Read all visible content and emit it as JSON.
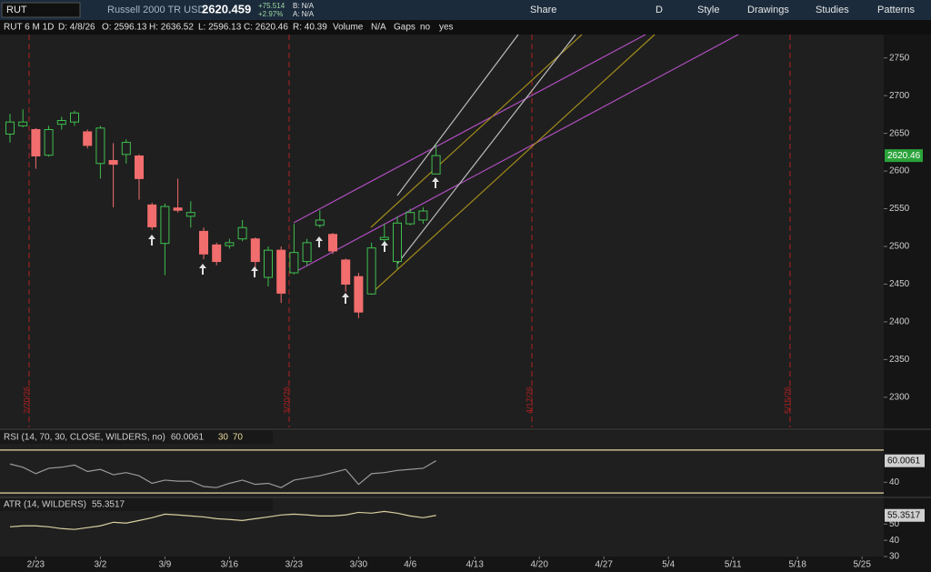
{
  "toolbar": {
    "symbol": "RUT",
    "description": "Russell 2000 TR USD",
    "last": "2620.459",
    "change": "+75.514",
    "change_pct": "+2.97%",
    "bid": "B: N/A",
    "ask": "A: N/A",
    "buttons": [
      "Share",
      "D",
      "Style",
      "Drawings",
      "Studies",
      "Patterns"
    ]
  },
  "info_bar": [
    "RUT 6 M 1D",
    "D: 4/8/26",
    "O: 2596.13",
    "H: 2636.52",
    "L: 2596.13",
    "C: 2620.46",
    "R: 40.39",
    "Volume",
    "N/A",
    "Gaps",
    "no",
    "yes"
  ],
  "chart_data": [
    {
      "type": "candlestick",
      "categories": [
        null,
        null,
        "2/23",
        null,
        null,
        null,
        null,
        "3/2",
        null,
        null,
        null,
        null,
        "3/9",
        null,
        null,
        null,
        null,
        "3/16",
        null,
        null,
        null,
        null,
        "3/23",
        null,
        null,
        null,
        null,
        "3/30",
        null,
        null,
        null,
        "4/6",
        null,
        null,
        null,
        null,
        "4/13",
        null,
        null,
        null,
        null,
        "4/20",
        null,
        null,
        null,
        null,
        "4/27",
        null,
        null,
        null,
        null,
        "5/4",
        null,
        null,
        null,
        null,
        "5/11",
        null,
        null,
        null,
        null,
        "5/18",
        null,
        null,
        null,
        null,
        "5/25",
        null
      ],
      "open": [
        2649,
        2660,
        2655,
        2621,
        2662,
        2665,
        2652,
        2610,
        2614,
        2622,
        2620,
        2555,
        2504,
        2551,
        2540,
        2520,
        2502,
        2501,
        2510,
        2510,
        2459,
        2495,
        2465,
        2480,
        2528,
        2516,
        2482,
        2460,
        2437,
        2509,
        2480,
        2530,
        2535,
        2596.13,
        null,
        null,
        null,
        null,
        null,
        null,
        null,
        null,
        null,
        null,
        null,
        null,
        null,
        null,
        null,
        null,
        null,
        null,
        null,
        null,
        null,
        null,
        null,
        null,
        null,
        null,
        null,
        null,
        null,
        null,
        null,
        null,
        null,
        null
      ],
      "high": [
        2676,
        2682,
        2657,
        2660,
        2672,
        2680,
        2655,
        2660,
        2637,
        2642,
        2622,
        2558,
        2557,
        2590,
        2560,
        2525,
        2505,
        2510,
        2535,
        2512,
        2500,
        2500,
        2530,
        2510,
        2548,
        2518,
        2484,
        2465,
        2505,
        2530,
        2540,
        2550,
        2552,
        2636.52,
        null,
        null,
        null,
        null,
        null,
        null,
        null,
        null,
        null,
        null,
        null,
        null,
        null,
        null,
        null,
        null,
        null,
        null,
        null,
        null,
        null,
        null,
        null,
        null,
        null,
        null,
        null,
        null,
        null,
        null,
        null,
        null,
        null,
        null
      ],
      "low": [
        2638,
        2658,
        2603,
        2619,
        2655,
        2660,
        2630,
        2590,
        2552,
        2610,
        2562,
        2522,
        2462,
        2545,
        2525,
        2483,
        2475,
        2497,
        2507,
        2468,
        2447,
        2425,
        2463,
        2475,
        2525,
        2490,
        2440,
        2405,
        2436,
        2500,
        2470,
        2528,
        2530,
        2596.13,
        null,
        null,
        null,
        null,
        null,
        null,
        null,
        null,
        null,
        null,
        null,
        null,
        null,
        null,
        null,
        null,
        null,
        null,
        null,
        null,
        null,
        null,
        null,
        null,
        null,
        null,
        null,
        null,
        null,
        null,
        null,
        null,
        null,
        null
      ],
      "close": [
        2665,
        2665,
        2620,
        2655,
        2667,
        2677,
        2634,
        2657,
        2609,
        2638,
        2590,
        2526,
        2553,
        2548,
        2545,
        2490,
        2480,
        2505,
        2525,
        2480,
        2495,
        2438,
        2492,
        2505,
        2535,
        2494,
        2450,
        2413,
        2498,
        2512,
        2531,
        2545,
        2547,
        2620.46,
        null,
        null,
        null,
        null,
        null,
        null,
        null,
        null,
        null,
        null,
        null,
        null,
        null,
        null,
        null,
        null,
        null,
        null,
        null,
        null,
        null,
        null,
        null,
        null,
        null,
        null,
        null,
        null,
        null,
        null,
        null,
        null,
        null,
        null
      ],
      "up_color": "#3fbf4f",
      "down_color": "#f26d6d",
      "ylim": [
        2260,
        2781
      ],
      "yticks": [
        2300,
        2350,
        2400,
        2450,
        2500,
        2550,
        2600,
        2650,
        2700,
        2750
      ],
      "last_price_label": "2620.46",
      "annotations": [
        "2/20/26",
        "3/20/26",
        "4/17/26",
        "5/15/26"
      ]
    },
    {
      "type": "line",
      "title": "RSI (14, 70, 30, CLOSE, WILDERS, no)",
      "color": "#9a9a9a",
      "levels": [
        30,
        70
      ],
      "values": [
        57,
        54,
        48,
        53,
        54,
        56,
        50,
        52,
        47,
        49,
        46,
        39,
        42,
        41,
        41,
        36,
        35,
        39,
        42,
        38,
        39,
        35,
        42,
        44,
        46,
        49,
        52,
        38,
        48,
        49,
        51,
        52,
        53,
        60.0061
      ],
      "ylim": [
        25,
        75
      ],
      "yticks": [
        40
      ]
    },
    {
      "type": "line",
      "title": "ATR (14, WILDERS)",
      "color": "#d8cfa0",
      "values": [
        48.3,
        48.9,
        48.9,
        48.3,
        47.2,
        46.7,
        47.8,
        48.9,
        51.1,
        50.6,
        52.2,
        53.9,
        56.1,
        55.6,
        55,
        54.4,
        53.3,
        52.8,
        52.2,
        53.3,
        54.4,
        55.6,
        56.1,
        55.6,
        55,
        55,
        55.6,
        57.2,
        56.7,
        57.8,
        56.7,
        55,
        53.9,
        55.3517
      ],
      "ylim": [
        30,
        58
      ],
      "yticks": [
        30,
        40,
        50
      ]
    }
  ]
}
